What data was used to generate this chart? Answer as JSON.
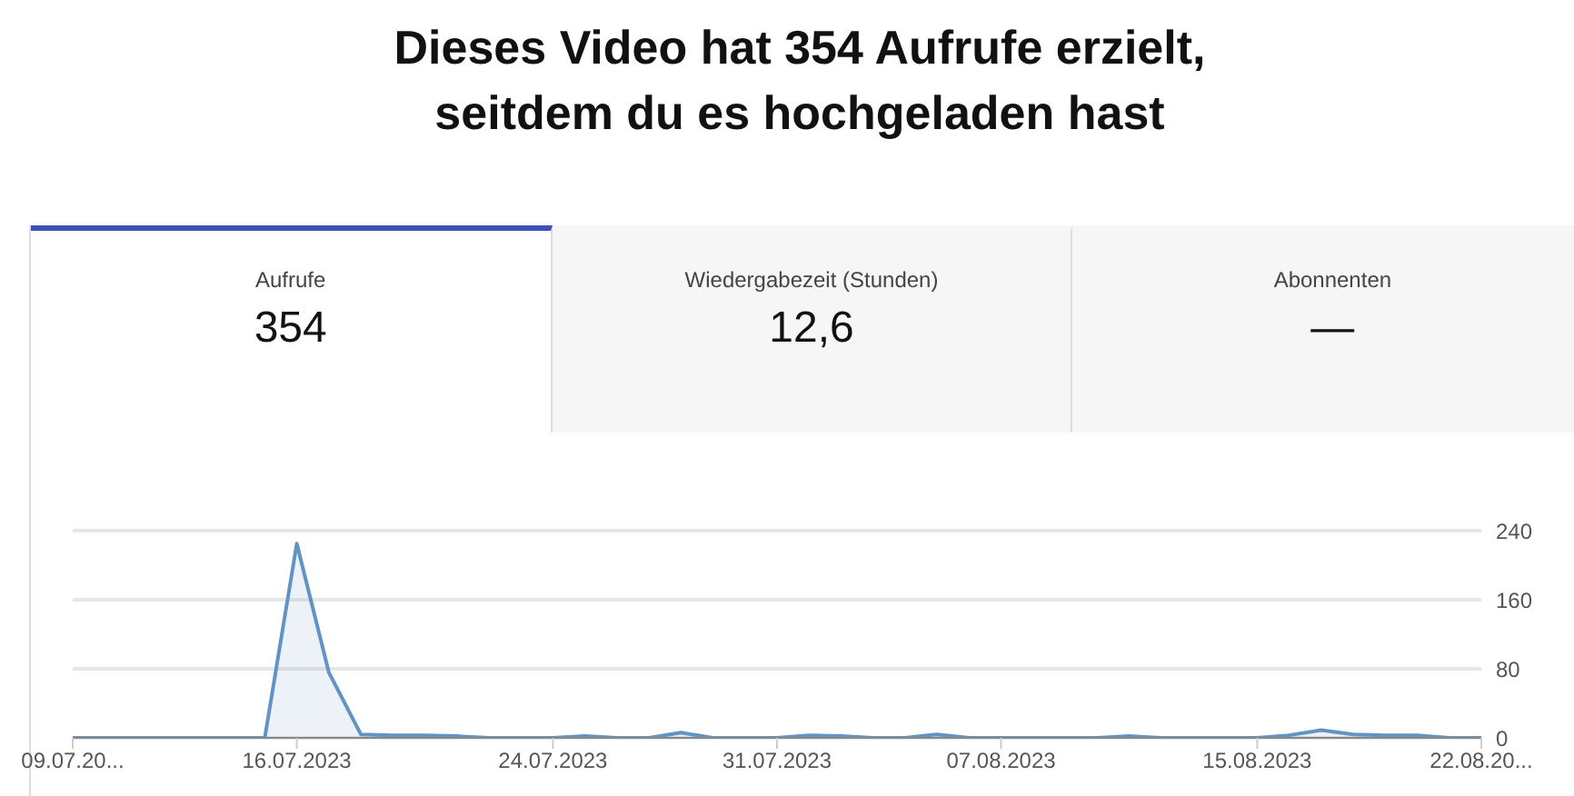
{
  "chart_data": {
    "type": "area",
    "title": "Dieses Video hat 354 Aufrufe erzielt, seitdem du es hochgeladen hast",
    "annotations": [
      "Aufrufe",
      "354",
      "Wiedergabezeit (Stunden)",
      "12,6",
      "Abonnenten",
      "—"
    ],
    "x": [
      "2023-07-09",
      "2023-07-10",
      "2023-07-11",
      "2023-07-12",
      "2023-07-13",
      "2023-07-14",
      "2023-07-15",
      "2023-07-16",
      "2023-07-17",
      "2023-07-18",
      "2023-07-19",
      "2023-07-20",
      "2023-07-21",
      "2023-07-22",
      "2023-07-23",
      "2023-07-24",
      "2023-07-25",
      "2023-07-26",
      "2023-07-27",
      "2023-07-28",
      "2023-07-29",
      "2023-07-30",
      "2023-07-31",
      "2023-08-01",
      "2023-08-02",
      "2023-08-03",
      "2023-08-04",
      "2023-08-05",
      "2023-08-06",
      "2023-08-07",
      "2023-08-08",
      "2023-08-09",
      "2023-08-10",
      "2023-08-11",
      "2023-08-12",
      "2023-08-13",
      "2023-08-14",
      "2023-08-15",
      "2023-08-16",
      "2023-08-17",
      "2023-08-18",
      "2023-08-19",
      "2023-08-20",
      "2023-08-21",
      "2023-08-22"
    ],
    "series": [
      {
        "color": "#6194c4",
        "values": [
          0,
          0,
          0,
          0,
          0,
          0,
          0,
          225,
          76,
          4,
          3,
          3,
          2,
          0,
          0,
          0,
          2,
          0,
          0,
          6,
          0,
          0,
          0,
          3,
          2,
          0,
          0,
          4,
          0,
          0,
          0,
          0,
          0,
          2,
          0,
          0,
          0,
          0,
          3,
          9,
          4,
          3,
          3,
          0,
          0
        ]
      }
    ],
    "xlim": [
      "2023-07-09",
      "2023-08-22"
    ],
    "xticks": [
      {
        "value": "2023-07-09",
        "label": "09.07.20..."
      },
      {
        "value": "2023-07-16",
        "label": "16.07.2023"
      },
      {
        "value": "2023-07-24",
        "label": "24.07.2023"
      },
      {
        "value": "2023-07-31",
        "label": "31.07.2023"
      },
      {
        "value": "2023-08-07",
        "label": "07.08.2023"
      },
      {
        "value": "2023-08-15",
        "label": "15.08.2023"
      },
      {
        "value": "2023-08-22",
        "label": "22.08.20..."
      }
    ],
    "ylim": [
      0,
      240
    ],
    "yticks": [
      0,
      80,
      160,
      240
    ],
    "grid": "y",
    "legend": false
  }
}
